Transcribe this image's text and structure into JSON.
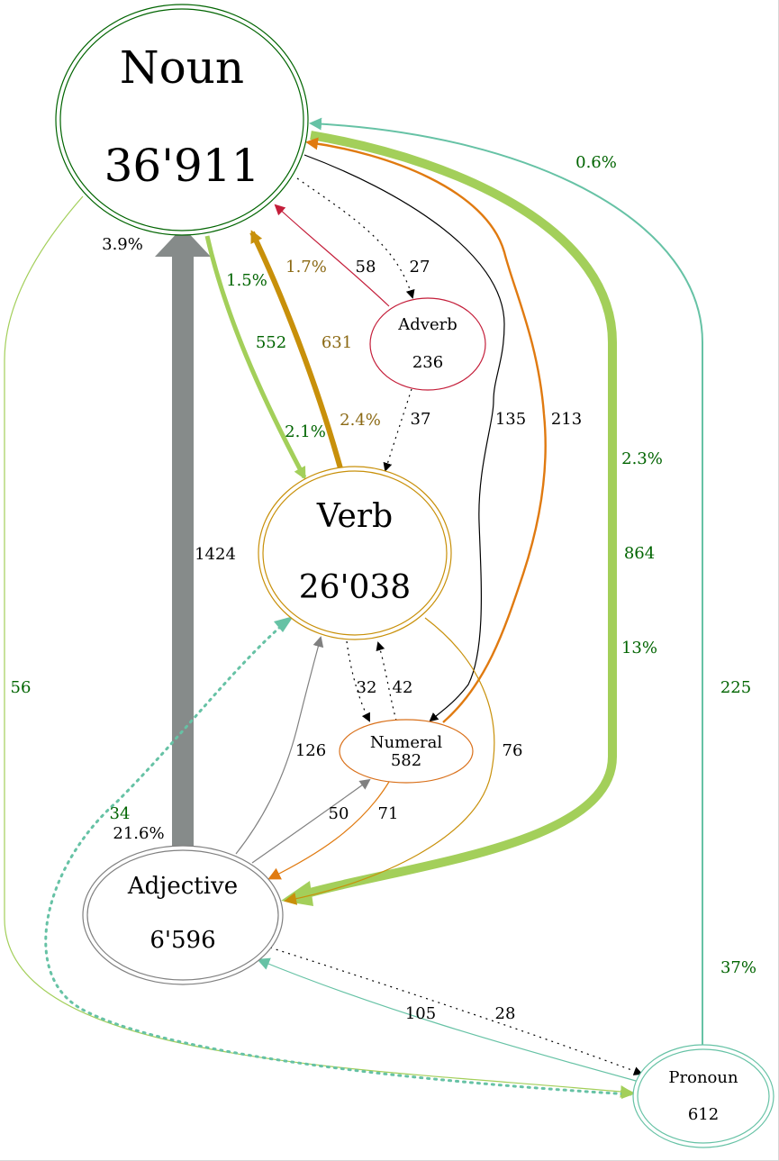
{
  "colors": {
    "noun": "#006400",
    "verb": "#c8900a",
    "adjective": "#808080",
    "adverb": "#c41e3a",
    "numeral": "#d9701a",
    "pronoun": "#66c2a5",
    "green_edge": "#a3cf5a",
    "orange_edge": "#e07a10",
    "label_green": "#006400",
    "label_brown": "#8b6914"
  },
  "nodes": {
    "noun": {
      "name": "Noun",
      "count": "36'911"
    },
    "verb": {
      "name": "Verb",
      "count": "26'038"
    },
    "adjective": {
      "name": "Adjective",
      "count": "6'596"
    },
    "adverb": {
      "name": "Adverb",
      "count": "236"
    },
    "numeral": {
      "name": "Numeral",
      "count": "582"
    },
    "pronoun": {
      "name": "Pronoun",
      "count": "612"
    }
  },
  "edges": {
    "noun_verb": {
      "count": "552",
      "pct_src": "1.5%",
      "pct_dst": "2.1%"
    },
    "verb_noun": {
      "count": "631",
      "pct_src": "2.4%",
      "pct_dst": "1.7%"
    },
    "adj_noun": {
      "count": "1424",
      "pct_src": "21.6%",
      "pct_dst": "3.9%"
    },
    "noun_adj": {
      "count": "864",
      "pct_src": "2.3%",
      "pct_dst": "13%"
    },
    "pron_noun": {
      "count": "225",
      "pct_src": "37%",
      "pct_dst": "0.6%"
    },
    "noun_pron": {
      "count": "56"
    },
    "adverb_noun": {
      "count": "58"
    },
    "noun_adverb": {
      "count": "27"
    },
    "adverb_verb": {
      "count": "37"
    },
    "noun_numeral": {
      "count": "135"
    },
    "numeral_noun": {
      "count": "213"
    },
    "verb_numeral": {
      "count": "32"
    },
    "numeral_verb": {
      "count": "42"
    },
    "verb_adj": {
      "count": "76"
    },
    "adj_verb": {
      "count": "126"
    },
    "adj_numeral": {
      "count": "50"
    },
    "numeral_adj": {
      "count": "71"
    },
    "pron_adj": {
      "count": "105"
    },
    "adj_pron": {
      "count": "28"
    },
    "verb_pron": {
      "count": "34"
    }
  }
}
